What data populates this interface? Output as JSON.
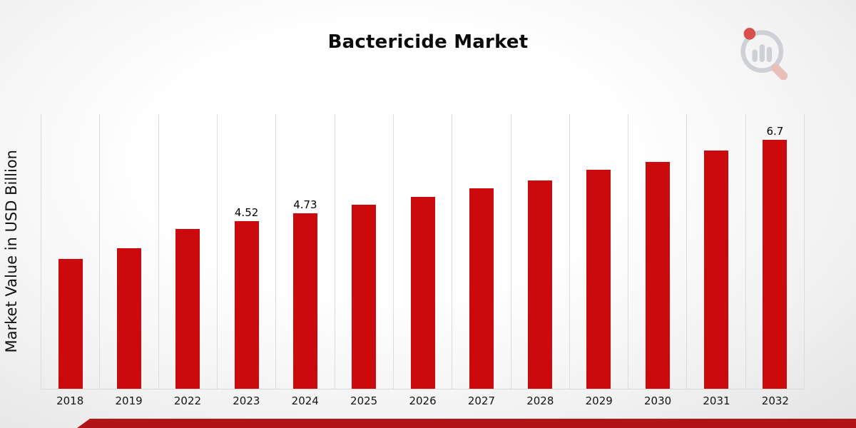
{
  "chart_data": {
    "type": "bar",
    "title": "Bactericide Market",
    "xlabel": "",
    "ylabel": "Market Value in USD Billion",
    "categories": [
      "2018",
      "2019",
      "2022",
      "2023",
      "2024",
      "2025",
      "2026",
      "2027",
      "2028",
      "2029",
      "2030",
      "2031",
      "2032"
    ],
    "values": [
      3.5,
      3.78,
      4.3,
      4.52,
      4.73,
      4.95,
      5.17,
      5.4,
      5.62,
      5.9,
      6.12,
      6.42,
      6.7
    ],
    "data_labels": [
      null,
      null,
      null,
      "4.52",
      "4.73",
      null,
      null,
      null,
      null,
      null,
      null,
      null,
      "6.7"
    ],
    "ylim": [
      0,
      7.4
    ],
    "grid": "vertical-gridlines-only",
    "legend": "none",
    "bar_color": "#cb0a0d"
  },
  "colors": {
    "bar": "#cb0a0d",
    "footer_strip": "#b01318",
    "gridline": "#dcdcdc",
    "logo_gray": "#c7cad0",
    "logo_red": "#d53131",
    "logo_pink": "#e7b6b2"
  }
}
